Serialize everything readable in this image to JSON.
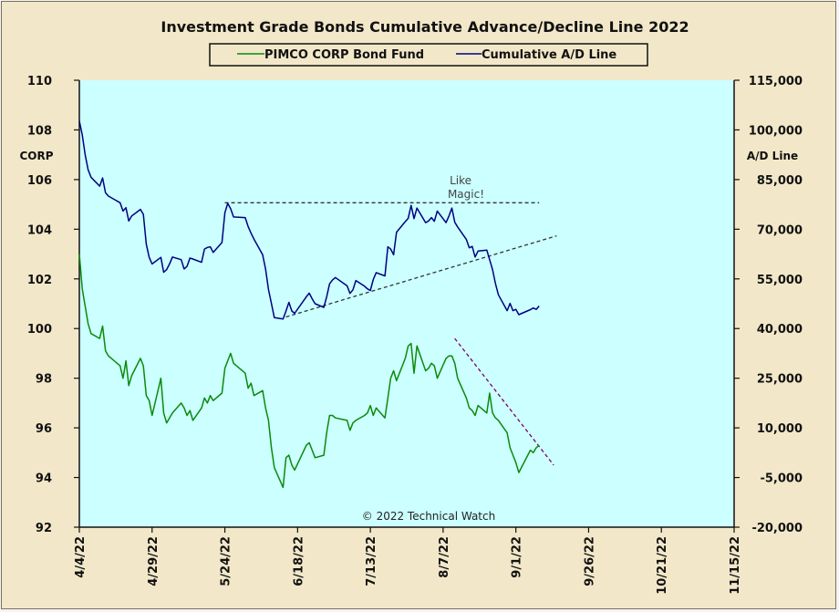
{
  "chart_data": {
    "type": "line",
    "title": "Investment Grade Bonds Cumulative Advance/Decline Line 2022",
    "colors": {
      "plot_background": "#ccffff",
      "frame_background": "#f2e8c9",
      "corp_line": "#0a8a0a",
      "ad_line": "#000080",
      "resistance_line": "#333333",
      "support_line": "#333333",
      "downtrend_line": "#800060"
    },
    "legend": {
      "placement": "top-center",
      "entries": [
        "PIMCO CORP Bond Fund",
        "Cumulative A/D Line"
      ]
    },
    "left_axis": {
      "label": "CORP",
      "range": [
        92,
        110
      ],
      "ticks": [
        "92",
        "94",
        "96",
        "98",
        "100",
        "102",
        "104",
        "106",
        "108",
        "110"
      ]
    },
    "right_axis": {
      "label": "A/D Line",
      "range": [
        -20000,
        115000
      ],
      "ticks": [
        "-20,000",
        "-5,000",
        "10,000",
        "25,000",
        "40,000",
        "55,000",
        "70,000",
        "85,000",
        "100,000",
        "115,000"
      ]
    },
    "x_axis": {
      "range": [
        "2022-04-04",
        "2022-11-15"
      ],
      "ticks": [
        "4/4/22",
        "4/29/22",
        "5/24/22",
        "6/18/22",
        "7/13/22",
        "8/7/22",
        "9/1/22",
        "9/26/22",
        "10/21/22",
        "11/15/22"
      ]
    },
    "grid": false,
    "annotation": "Like\nMagic!",
    "credit": "© 2022 Technical Watch",
    "series": [
      {
        "name": "PIMCO CORP Bond Fund",
        "axis": "left",
        "x": [
          "2022-04-04",
          "2022-04-05",
          "2022-04-06",
          "2022-04-07",
          "2022-04-08",
          "2022-04-11",
          "2022-04-12",
          "2022-04-13",
          "2022-04-14",
          "2022-04-18",
          "2022-04-19",
          "2022-04-20",
          "2022-04-21",
          "2022-04-22",
          "2022-04-25",
          "2022-04-26",
          "2022-04-27",
          "2022-04-28",
          "2022-04-29",
          "2022-05-02",
          "2022-05-03",
          "2022-05-04",
          "2022-05-05",
          "2022-05-06",
          "2022-05-09",
          "2022-05-10",
          "2022-05-11",
          "2022-05-12",
          "2022-05-13",
          "2022-05-16",
          "2022-05-17",
          "2022-05-18",
          "2022-05-19",
          "2022-05-20",
          "2022-05-23",
          "2022-05-24",
          "2022-05-25",
          "2022-05-26",
          "2022-05-27",
          "2022-05-31",
          "2022-06-01",
          "2022-06-02",
          "2022-06-03",
          "2022-06-06",
          "2022-06-07",
          "2022-06-08",
          "2022-06-09",
          "2022-06-10",
          "2022-06-13",
          "2022-06-14",
          "2022-06-15",
          "2022-06-16",
          "2022-06-17",
          "2022-06-21",
          "2022-06-22",
          "2022-06-23",
          "2022-06-24",
          "2022-06-27",
          "2022-06-28",
          "2022-06-29",
          "2022-06-30",
          "2022-07-01",
          "2022-07-05",
          "2022-07-06",
          "2022-07-07",
          "2022-07-08",
          "2022-07-11",
          "2022-07-12",
          "2022-07-13",
          "2022-07-14",
          "2022-07-15",
          "2022-07-18",
          "2022-07-19",
          "2022-07-20",
          "2022-07-21",
          "2022-07-22",
          "2022-07-25",
          "2022-07-26",
          "2022-07-27",
          "2022-07-28",
          "2022-07-29",
          "2022-08-01",
          "2022-08-02",
          "2022-08-03",
          "2022-08-04",
          "2022-08-05",
          "2022-08-08",
          "2022-08-09",
          "2022-08-10",
          "2022-08-11",
          "2022-08-12",
          "2022-08-15",
          "2022-08-16",
          "2022-08-17",
          "2022-08-18",
          "2022-08-19",
          "2022-08-22",
          "2022-08-23",
          "2022-08-24",
          "2022-08-25",
          "2022-08-26",
          "2022-08-29",
          "2022-08-30",
          "2022-08-31",
          "2022-09-01",
          "2022-09-02",
          "2022-09-06",
          "2022-09-07",
          "2022-09-08",
          "2022-09-09"
        ],
        "values": [
          103.0,
          101.6,
          100.9,
          100.2,
          99.8,
          99.6,
          100.1,
          99.1,
          98.9,
          98.5,
          98.0,
          98.7,
          97.7,
          98.1,
          98.8,
          98.5,
          97.3,
          97.1,
          96.5,
          98.0,
          96.6,
          96.2,
          96.4,
          96.6,
          97.0,
          96.8,
          96.5,
          96.7,
          96.3,
          96.8,
          97.2,
          97.0,
          97.3,
          97.1,
          97.4,
          98.4,
          98.7,
          99.0,
          98.6,
          98.2,
          97.6,
          97.8,
          97.3,
          97.5,
          96.8,
          96.3,
          95.2,
          94.4,
          93.6,
          94.8,
          94.9,
          94.5,
          94.3,
          95.3,
          95.4,
          95.1,
          94.8,
          94.9,
          95.8,
          96.5,
          96.5,
          96.4,
          96.3,
          95.9,
          96.2,
          96.3,
          96.5,
          96.6,
          96.9,
          96.5,
          96.8,
          96.4,
          97.2,
          98.0,
          98.3,
          97.9,
          98.8,
          99.3,
          99.4,
          98.2,
          99.3,
          98.3,
          98.4,
          98.6,
          98.5,
          98.0,
          98.8,
          98.9,
          98.9,
          98.6,
          98.0,
          97.2,
          96.8,
          96.7,
          96.5,
          96.9,
          96.6,
          97.4,
          96.6,
          96.4,
          96.3,
          95.8,
          95.2,
          94.9,
          94.6,
          94.2,
          95.1,
          95.0,
          95.2,
          95.3
        ]
      },
      {
        "name": "Cumulative A/D Line",
        "axis": "right",
        "x": [
          "2022-04-04",
          "2022-04-05",
          "2022-04-06",
          "2022-04-07",
          "2022-04-08",
          "2022-04-11",
          "2022-04-12",
          "2022-04-13",
          "2022-04-14",
          "2022-04-18",
          "2022-04-19",
          "2022-04-20",
          "2022-04-21",
          "2022-04-22",
          "2022-04-25",
          "2022-04-26",
          "2022-04-27",
          "2022-04-28",
          "2022-04-29",
          "2022-05-02",
          "2022-05-03",
          "2022-05-04",
          "2022-05-05",
          "2022-05-06",
          "2022-05-09",
          "2022-05-10",
          "2022-05-11",
          "2022-05-12",
          "2022-05-13",
          "2022-05-16",
          "2022-05-17",
          "2022-05-18",
          "2022-05-19",
          "2022-05-20",
          "2022-05-23",
          "2022-05-24",
          "2022-05-25",
          "2022-05-26",
          "2022-05-27",
          "2022-05-31",
          "2022-06-01",
          "2022-06-02",
          "2022-06-03",
          "2022-06-06",
          "2022-06-07",
          "2022-06-08",
          "2022-06-09",
          "2022-06-10",
          "2022-06-13",
          "2022-06-14",
          "2022-06-15",
          "2022-06-16",
          "2022-06-17",
          "2022-06-21",
          "2022-06-22",
          "2022-06-23",
          "2022-06-24",
          "2022-06-27",
          "2022-06-28",
          "2022-06-29",
          "2022-06-30",
          "2022-07-01",
          "2022-07-05",
          "2022-07-06",
          "2022-07-07",
          "2022-07-08",
          "2022-07-11",
          "2022-07-12",
          "2022-07-13",
          "2022-07-14",
          "2022-07-15",
          "2022-07-18",
          "2022-07-19",
          "2022-07-20",
          "2022-07-21",
          "2022-07-22",
          "2022-07-25",
          "2022-07-26",
          "2022-07-27",
          "2022-07-28",
          "2022-07-29",
          "2022-08-01",
          "2022-08-02",
          "2022-08-03",
          "2022-08-04",
          "2022-08-05",
          "2022-08-08",
          "2022-08-09",
          "2022-08-10",
          "2022-08-11",
          "2022-08-12",
          "2022-08-15",
          "2022-08-16",
          "2022-08-17",
          "2022-08-18",
          "2022-08-19",
          "2022-08-22",
          "2022-08-23",
          "2022-08-24",
          "2022-08-25",
          "2022-08-26",
          "2022-08-29",
          "2022-08-30",
          "2022-08-31",
          "2022-09-01",
          "2022-09-02",
          "2022-09-06",
          "2022-09-07",
          "2022-09-08",
          "2022-09-09"
        ],
        "values": [
          102700,
          98500,
          92500,
          88000,
          85700,
          83000,
          85500,
          81000,
          80000,
          78000,
          75500,
          76500,
          72500,
          74000,
          76000,
          74500,
          65500,
          61500,
          59500,
          61500,
          57000,
          57800,
          59500,
          61600,
          60800,
          58000,
          58800,
          61300,
          61000,
          60000,
          64000,
          64500,
          64700,
          63000,
          66000,
          75000,
          77800,
          76200,
          73700,
          73500,
          70800,
          68800,
          67000,
          62300,
          58000,
          51800,
          47600,
          43300,
          42900,
          45300,
          47900,
          45300,
          44600,
          49600,
          50700,
          49000,
          47500,
          46400,
          49600,
          53500,
          54700,
          55400,
          52900,
          50600,
          51700,
          54500,
          52800,
          52000,
          51500,
          54800,
          56900,
          55900,
          64700,
          64000,
          62300,
          69100,
          72300,
          73300,
          77200,
          73200,
          76400,
          72000,
          72500,
          73500,
          72400,
          75500,
          72000,
          74000,
          76400,
          72100,
          70700,
          66900,
          64400,
          64800,
          61600,
          63400,
          63700,
          60800,
          57800,
          53600,
          50200,
          45400,
          47600,
          45400,
          45800,
          44200,
          45700,
          46200,
          45800,
          46800
        ]
      }
    ],
    "trendlines": [
      {
        "name": "resistance",
        "x": [
          "2022-05-24",
          "2022-09-09"
        ],
        "values": [
          78000,
          78000
        ],
        "axis": "right",
        "style": "dashed"
      },
      {
        "name": "support",
        "x": [
          "2022-06-14",
          "2022-09-15"
        ],
        "values": [
          43500,
          68000
        ],
        "axis": "right",
        "style": "dashed"
      },
      {
        "name": "downtrend",
        "x": [
          "2022-08-11",
          "2022-09-14"
        ],
        "values": [
          99.6,
          94.5
        ],
        "axis": "left",
        "style": "dashed"
      }
    ]
  }
}
